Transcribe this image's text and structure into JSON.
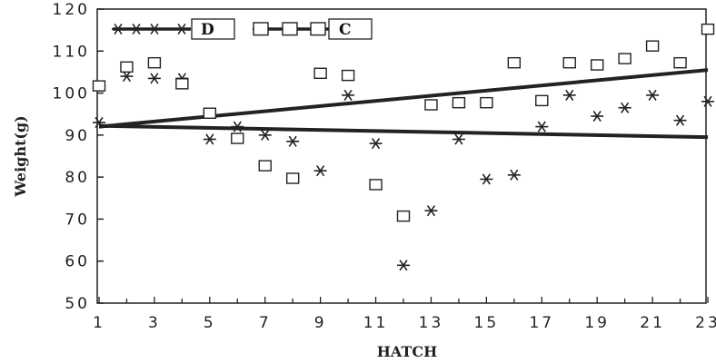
{
  "chart_data": {
    "type": "scatter",
    "xlabel": "HATCH",
    "ylabel": "Weight(g)",
    "xlim": [
      1,
      23
    ],
    "ylim": [
      50,
      120
    ],
    "xticks": [
      1,
      3,
      5,
      7,
      9,
      11,
      13,
      15,
      17,
      19,
      21,
      23
    ],
    "yticks": [
      50,
      60,
      70,
      80,
      90,
      100,
      110,
      120
    ],
    "grid": false,
    "legend_position": "top-left",
    "series": [
      {
        "name": "D",
        "marker": "star",
        "x": [
          1,
          2,
          3,
          4,
          5,
          6,
          7,
          8,
          9,
          10,
          11,
          12,
          13,
          14,
          15,
          16,
          17,
          18,
          19,
          20,
          21,
          22,
          23
        ],
        "y": [
          93,
          104,
          103.5,
          103.5,
          89,
          92,
          90,
          88.5,
          81.5,
          99.5,
          88,
          59,
          72,
          89,
          79.5,
          80.5,
          92,
          99.5,
          94.5,
          96.5,
          99.5,
          93.5,
          98
        ],
        "trend": {
          "x": [
            1,
            23
          ],
          "y": [
            92.2,
            89.5
          ]
        }
      },
      {
        "name": "C",
        "marker": "square",
        "x": [
          1,
          2,
          3,
          4,
          5,
          6,
          7,
          8,
          9,
          10,
          11,
          12,
          13,
          14,
          15,
          16,
          17,
          18,
          19,
          20,
          21,
          22,
          23
        ],
        "y": [
          101.5,
          106,
          107,
          102,
          95,
          89,
          82.5,
          79.5,
          104.5,
          104,
          78,
          70.5,
          97,
          97.5,
          97.5,
          107,
          98,
          107,
          106.5,
          108,
          111,
          107,
          115
        ],
        "trend": {
          "x": [
            1,
            23
          ],
          "y": [
            92,
            105.5
          ]
        }
      }
    ]
  }
}
